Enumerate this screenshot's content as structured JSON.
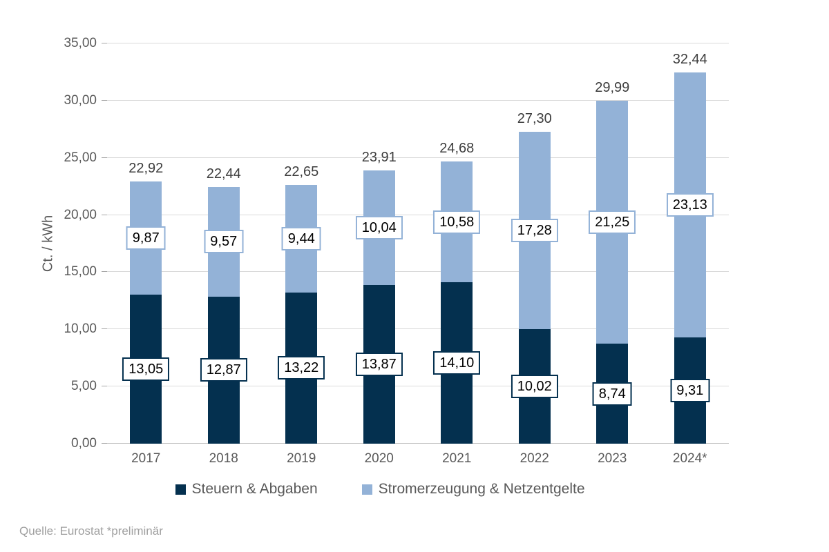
{
  "footer": {
    "text": "Quelle: Eurostat  *preliminär"
  },
  "chart_data": {
    "type": "bar",
    "stacked": true,
    "title": "",
    "xlabel": "",
    "ylabel": "Ct. / kWh",
    "ylim": [
      0,
      35
    ],
    "grid": true,
    "legend_position": "bottom",
    "yticks": {
      "values": [
        0,
        5,
        10,
        15,
        20,
        25,
        30,
        35
      ],
      "labels": [
        "0,00",
        "5,00",
        "10,00",
        "15,00",
        "20,00",
        "25,00",
        "30,00",
        "35,00"
      ]
    },
    "categories": [
      "2017",
      "2018",
      "2019",
      "2020",
      "2021",
      "2022",
      "2023",
      "2024*"
    ],
    "series": [
      {
        "name": "Steuern & Abgaben",
        "color": "#04304f",
        "values": [
          13.05,
          12.87,
          13.22,
          13.87,
          14.1,
          10.02,
          8.74,
          9.31
        ],
        "labels": [
          "13,05",
          "12,87",
          "13,22",
          "13,87",
          "14,10",
          "10,02",
          "8,74",
          "9,31"
        ]
      },
      {
        "name": "Stromerzeugung & Netzentgelte",
        "color": "#93b2d7",
        "values": [
          9.87,
          9.57,
          9.44,
          10.04,
          10.58,
          17.28,
          21.25,
          23.13
        ],
        "labels": [
          "9,87",
          "9,57",
          "9,44",
          "10,04",
          "10,58",
          "17,28",
          "21,25",
          "23,13"
        ]
      }
    ],
    "totals": {
      "values": [
        22.92,
        22.44,
        22.65,
        23.91,
        24.68,
        27.3,
        29.99,
        32.44
      ],
      "labels": [
        "22,92",
        "22,44",
        "22,65",
        "23,91",
        "24,68",
        "27,30",
        "29,99",
        "32,44"
      ]
    }
  }
}
